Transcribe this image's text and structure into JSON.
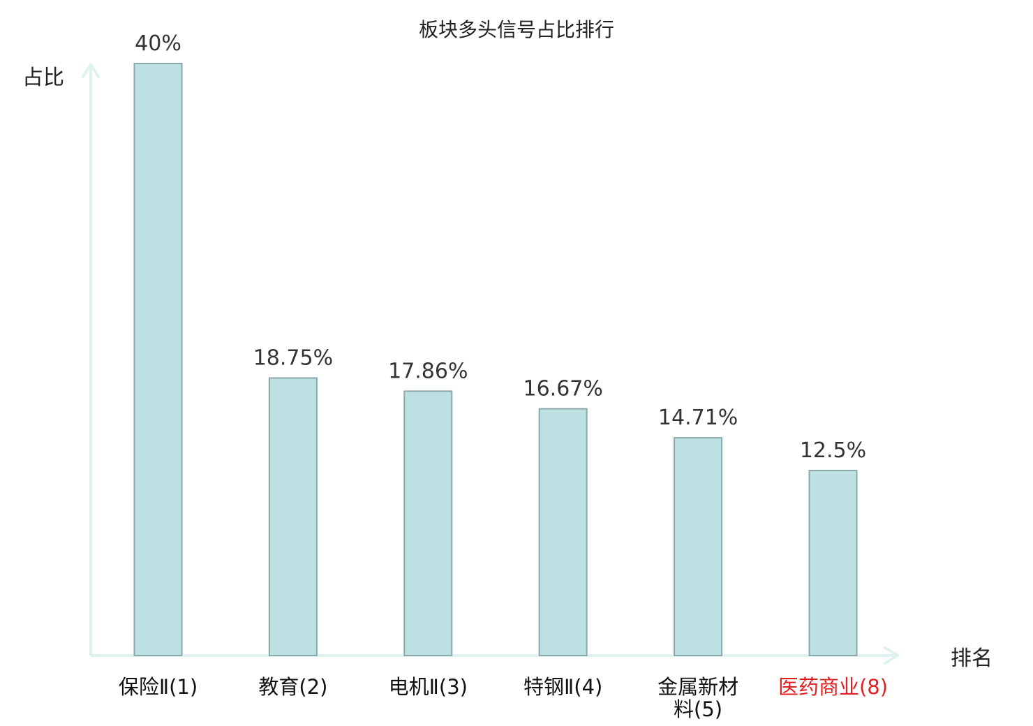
{
  "chart_data": {
    "type": "bar",
    "title": "板块多头信号占比排行",
    "xlabel": "排名",
    "ylabel": "占比",
    "categories": [
      "保险Ⅱ(1)",
      "教育(2)",
      "电机Ⅱ(3)",
      "特钢Ⅱ(4)",
      "金属新材料(5)",
      "医药商业(8)"
    ],
    "category_lines": [
      [
        "保险Ⅱ(1)"
      ],
      [
        "教育(2)"
      ],
      [
        "电机Ⅱ(3)"
      ],
      [
        "特钢Ⅱ(4)"
      ],
      [
        "金属新材",
        "料(5)"
      ],
      [
        "医药商业(8)"
      ]
    ],
    "category_colors": [
      "#111111",
      "#111111",
      "#111111",
      "#111111",
      "#111111",
      "#e02020"
    ],
    "values": [
      40,
      18.75,
      17.86,
      16.67,
      14.71,
      12.5
    ],
    "value_labels": [
      "40%",
      "18.75%",
      "17.86%",
      "16.67%",
      "14.71%",
      "12.5%"
    ],
    "ylim": [
      0,
      40
    ],
    "grid": false,
    "colors": {
      "bar_fill": "#bde0e3",
      "bar_stroke": "#8aa8aa",
      "axis": "#e0f2ef",
      "highlight": "#e02020"
    }
  }
}
